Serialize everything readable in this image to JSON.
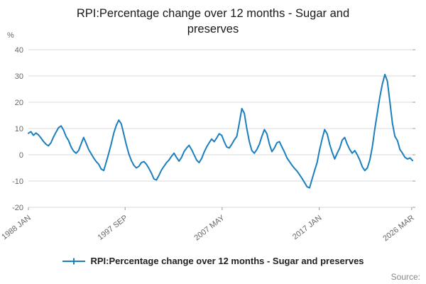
{
  "header": {
    "title": "RPI:Percentage change over 12 months - Sugar and preserves"
  },
  "colors": {
    "line": "#1b7fbe",
    "grid": "#d9d9d9",
    "tick": "#999999"
  },
  "source": {
    "label": "Source:"
  },
  "chart_data": {
    "type": "line",
    "title": "RPI:Percentage change over 12 months - Sugar and preserves",
    "xlabel": "",
    "ylabel": "%",
    "ylim": [
      -20,
      40
    ],
    "xlim": [
      1988.08,
      2026.33
    ],
    "y_ticks": [
      -20,
      -10,
      0,
      10,
      20,
      30,
      40
    ],
    "x_tick_labels": [
      "1988 JAN",
      "1997 SEP",
      "2007 MAY",
      "2017 JAN",
      "2026 MAR"
    ],
    "x_tick_positions": [
      1988.08,
      1997.71,
      2007.37,
      2017.04,
      2026.25
    ],
    "x_start": 1988.08,
    "x_step": 0.25,
    "grid": true,
    "legend_position": "bottom",
    "series": [
      {
        "name": "RPI:Percentage change over 12 months - Sugar and preserves",
        "values": [
          8.2,
          8.8,
          7.4,
          8.3,
          7.6,
          6.4,
          5.1,
          4.0,
          3.4,
          4.6,
          6.8,
          8.6,
          10.3,
          11.0,
          9.4,
          7.0,
          5.4,
          3.0,
          1.4,
          0.6,
          1.6,
          4.2,
          6.6,
          4.4,
          2.0,
          0.4,
          -1.2,
          -2.6,
          -3.6,
          -5.4,
          -6.0,
          -2.8,
          0.6,
          4.2,
          8.2,
          11.2,
          13.2,
          11.8,
          7.8,
          3.8,
          0.4,
          -2.2,
          -4.0,
          -5.0,
          -4.4,
          -3.0,
          -2.6,
          -3.6,
          -5.2,
          -7.0,
          -9.2,
          -9.6,
          -7.8,
          -5.8,
          -4.4,
          -3.0,
          -2.0,
          -0.6,
          0.6,
          -1.0,
          -2.4,
          -1.0,
          1.2,
          2.6,
          3.6,
          2.0,
          0.0,
          -2.0,
          -3.0,
          -1.4,
          1.0,
          3.0,
          4.6,
          6.0,
          5.0,
          6.4,
          8.0,
          7.4,
          5.0,
          3.0,
          2.6,
          4.0,
          5.6,
          7.0,
          12.0,
          17.6,
          15.8,
          10.0,
          5.0,
          1.6,
          0.6,
          2.0,
          4.0,
          7.0,
          9.6,
          8.0,
          4.0,
          1.2,
          2.6,
          4.6,
          5.0,
          3.0,
          1.0,
          -1.2,
          -2.6,
          -4.0,
          -5.2,
          -6.2,
          -7.6,
          -9.0,
          -10.6,
          -12.2,
          -12.6,
          -9.2,
          -6.0,
          -3.0,
          2.0,
          6.0,
          9.6,
          8.0,
          4.0,
          1.0,
          -1.6,
          0.6,
          2.6,
          5.6,
          6.6,
          4.0,
          2.0,
          0.6,
          1.6,
          0.0,
          -2.0,
          -4.6,
          -6.0,
          -5.0,
          -2.0,
          3.0,
          10.0,
          16.0,
          22.0,
          27.0,
          30.6,
          28.0,
          20.0,
          12.0,
          7.0,
          5.4,
          2.0,
          0.6,
          -1.0,
          -1.6,
          -1.2,
          -2.2
        ]
      }
    ]
  }
}
